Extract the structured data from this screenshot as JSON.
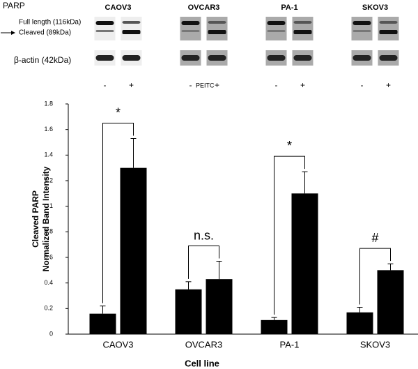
{
  "blot": {
    "protein": "PARP",
    "full_length": "Full length (116kDa)",
    "cleaved": "Cleaved (89kDa)",
    "loading_control": "β-actin (42kDa)",
    "treatment": "PEITC",
    "treatment_signs": [
      "-",
      "+"
    ]
  },
  "chart_data": {
    "type": "bar",
    "xlabel": "Cell line",
    "ylabel": [
      "Cleaved PARP",
      "Normalized Band Intensity"
    ],
    "categories": [
      "CAOV3",
      "OVCAR3",
      "PA-1",
      "SKOV3"
    ],
    "series": [
      {
        "color": "#000000",
        "values": [
          0.16,
          0.35,
          0.11,
          0.17
        ],
        "errors": [
          0.06,
          0.06,
          0.02,
          0.04
        ]
      },
      {
        "color": "#000000",
        "values": [
          1.3,
          0.43,
          1.1,
          0.5
        ],
        "errors": [
          0.23,
          0.14,
          0.17,
          0.05
        ]
      }
    ],
    "significance": [
      "*",
      "n.s.",
      "*",
      "#"
    ],
    "ylim": [
      0,
      1.8
    ],
    "yticks": [
      0,
      0.2,
      0.4,
      0.6,
      0.8,
      1,
      1.2,
      1.4,
      1.6,
      1.8
    ],
    "grid": false
  }
}
